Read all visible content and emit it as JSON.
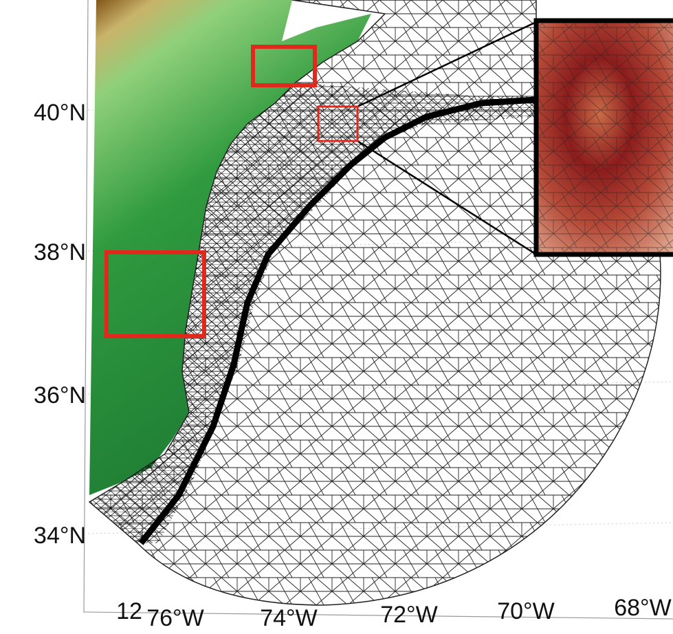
{
  "axes": {
    "lat_labels": [
      "40°N",
      "38°N",
      "36°N",
      "34°N"
    ],
    "lon_labels": [
      "76°W",
      "74°W",
      "72°W",
      "70°W",
      "68°W"
    ]
  },
  "page_number": "12"
}
